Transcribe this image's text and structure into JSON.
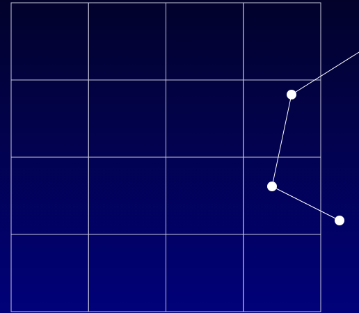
{
  "colors": {
    "background_top": "#02022b",
    "background_bottom": "#01017a",
    "grid_line": "#c8c8dc",
    "path_line": "#ffffff",
    "node_fill": "#ffffff"
  },
  "grid": {
    "rows": 4,
    "columns": 4
  },
  "path": {
    "nodes": [
      {
        "id": "node-1"
      },
      {
        "id": "node-2"
      },
      {
        "id": "node-3"
      }
    ],
    "exits_off_edge": true
  }
}
